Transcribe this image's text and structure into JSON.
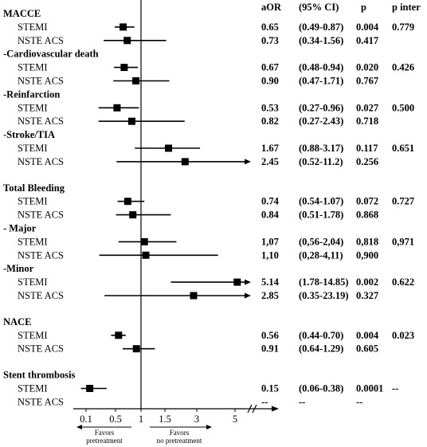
{
  "chart_data": {
    "type": "forest",
    "columns": {
      "aor": "aOR",
      "ci": "(95% CI)",
      "p": "p",
      "pinter": "p inter"
    },
    "x_ticks": [
      {
        "value": 0.1,
        "label": "0.1"
      },
      {
        "value": 0.5,
        "label": "0.5"
      },
      {
        "value": 1,
        "label": "1"
      },
      {
        "value": 1.5,
        "label": "1.5"
      },
      {
        "value": 3,
        "label": "3"
      },
      {
        "value": 5,
        "label": "5"
      }
    ],
    "reference_line": 1,
    "favors_left": [
      "Favors",
      "pretreatment"
    ],
    "favors_right": [
      "Favors",
      "no pretreatment"
    ],
    "rows": [
      {
        "kind": "header",
        "label": "MACCE"
      },
      {
        "kind": "data",
        "label": "STEMI",
        "or": 0.65,
        "lo": 0.49,
        "hi": 0.87,
        "arrow": false,
        "aor": "0.65",
        "ci": "(0.49-0.87)",
        "p": "0.004",
        "pinter": "0.779"
      },
      {
        "kind": "data",
        "label": "NSTE ACS",
        "or": 0.73,
        "lo": 0.34,
        "hi": 1.56,
        "arrow": false,
        "aor": "0.73",
        "ci": "(0.34-1.56)",
        "p": "0.417",
        "pinter": ""
      },
      {
        "kind": "header",
        "label": "-Cardiovascular death"
      },
      {
        "kind": "data",
        "label": "STEMI",
        "or": 0.67,
        "lo": 0.48,
        "hi": 0.94,
        "arrow": false,
        "aor": "0.67",
        "ci": "(0.48-0.94)",
        "p": "0.020",
        "pinter": "0.426"
      },
      {
        "kind": "data",
        "label": "NSTE ACS",
        "or": 0.9,
        "lo": 0.47,
        "hi": 1.71,
        "arrow": false,
        "aor": "0.90",
        "ci": "(0.47-1.71)",
        "p": "0.767",
        "pinter": ""
      },
      {
        "kind": "header",
        "label": "-Reinfarction"
      },
      {
        "kind": "data",
        "label": "STEMI",
        "or": 0.53,
        "lo": 0.27,
        "hi": 0.96,
        "arrow": false,
        "aor": "0.53",
        "ci": "(0.27-0.96)",
        "p": "0.027",
        "pinter": "0.500"
      },
      {
        "kind": "data",
        "label": "NSTE ACS",
        "or": 0.82,
        "lo": 0.27,
        "hi": 2.43,
        "arrow": false,
        "aor": "0.82",
        "ci": "(0.27-2.43)",
        "p": "0.718",
        "pinter": ""
      },
      {
        "kind": "header",
        "label": "-Stroke/TIA"
      },
      {
        "kind": "data",
        "label": "STEMI",
        "or": 1.67,
        "lo": 0.88,
        "hi": 3.17,
        "arrow": false,
        "aor": "1.67",
        "ci": "(0.88-3.17)",
        "p": "0.117",
        "pinter": "0.651"
      },
      {
        "kind": "data",
        "label": "NSTE ACS",
        "or": 2.45,
        "lo": 0.52,
        "hi": 11.2,
        "arrow": true,
        "aor": "2.45",
        "ci": "(0.52-11.2)",
        "p": "0.256",
        "pinter": ""
      },
      {
        "kind": "spacer"
      },
      {
        "kind": "header",
        "label": "Total Bleeding"
      },
      {
        "kind": "data",
        "label": "STEMI",
        "or": 0.74,
        "lo": 0.54,
        "hi": 1.07,
        "arrow": false,
        "aor": "0.74",
        "ci": "(0.54-1.07)",
        "p": "0.072",
        "pinter": "0.727"
      },
      {
        "kind": "data",
        "label": "NSTE ACS",
        "or": 0.84,
        "lo": 0.51,
        "hi": 1.78,
        "arrow": false,
        "aor": "0.84",
        "ci": "(0.51-1.78)",
        "p": "0.868",
        "pinter": ""
      },
      {
        "kind": "header",
        "label": " - Major"
      },
      {
        "kind": "data",
        "label": "STEMI",
        "or": 1.07,
        "lo": 0.56,
        "hi": 2.04,
        "arrow": false,
        "aor": "1,07",
        "ci": "(0,56-2,04)",
        "p": "0,818",
        "pinter": "0,971"
      },
      {
        "kind": "data",
        "label": "NSTE ACS",
        "or": 1.1,
        "lo": 0.28,
        "hi": 4.11,
        "arrow": false,
        "aor": "1,10",
        "ci": "(0,28-4,11)",
        "p": "0,900",
        "pinter": ""
      },
      {
        "kind": "header",
        "label": "-Minor"
      },
      {
        "kind": "data",
        "label": "STEMI",
        "or": 5.14,
        "lo": 1.78,
        "hi": 14.85,
        "arrow": true,
        "aor": "5.14",
        "ci": "(1.78-14.85)",
        "p": "0.002",
        "pinter": "0.622"
      },
      {
        "kind": "data",
        "label": "NSTE ACS",
        "or": 2.85,
        "lo": 0.35,
        "hi": 23.19,
        "arrow": true,
        "aor": "2.85",
        "ci": "(0.35-23.19)",
        "p": "0.327",
        "pinter": ""
      },
      {
        "kind": "spacer"
      },
      {
        "kind": "header",
        "label": "NACE"
      },
      {
        "kind": "data",
        "label": "STEMI",
        "or": 0.56,
        "lo": 0.44,
        "hi": 0.7,
        "arrow": false,
        "aor": "0.56",
        "ci": "(0.44-0.70)",
        "p": "0.004",
        "pinter": "0.023"
      },
      {
        "kind": "data",
        "label": "NSTE ACS",
        "or": 0.91,
        "lo": 0.64,
        "hi": 1.29,
        "arrow": false,
        "aor": "0.91",
        "ci": "(0.64-1.29)",
        "p": "0.605",
        "pinter": ""
      },
      {
        "kind": "spacer"
      },
      {
        "kind": "header",
        "label": "Stent thrombosis"
      },
      {
        "kind": "data",
        "label": "STEMI",
        "or": 0.15,
        "lo": 0.06,
        "hi": 0.38,
        "arrow": false,
        "aor": "0.15",
        "ci": "(0.06-0.38)",
        "p": "0.0001",
        "pinter": "--"
      },
      {
        "kind": "data",
        "label": "NSTE ACS",
        "or": null,
        "lo": null,
        "hi": null,
        "arrow": false,
        "aor": "--",
        "ci": "--",
        "p": "--",
        "pinter": ""
      }
    ]
  }
}
